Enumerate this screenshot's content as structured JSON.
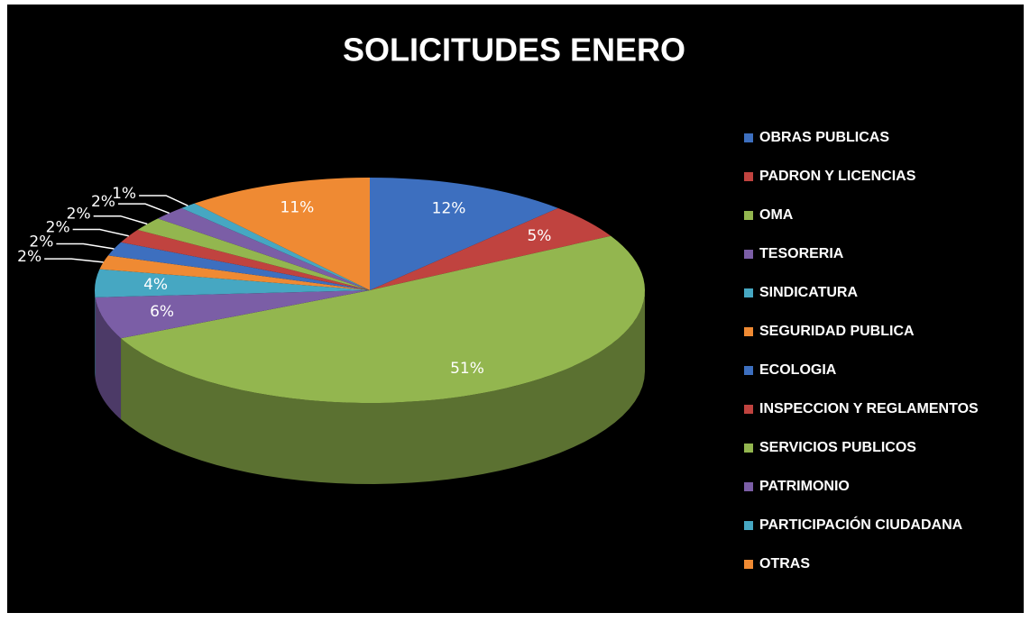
{
  "chart_data": {
    "type": "pie",
    "title": "SOLICITUDES ENERO",
    "categories": [
      "OBRAS PUBLICAS",
      "PADRON Y LICENCIAS",
      "OMA",
      "TESORERIA",
      "SINDICATURA",
      "SEGURIDAD PUBLICA",
      "ECOLOGIA",
      "INSPECCION Y REGLAMENTOS",
      "SERVICIOS PUBLICOS",
      "PATRIMONIO",
      "PARTICIPACIÓN CIUDADANA",
      "OTRAS"
    ],
    "values": [
      12,
      5,
      51,
      6,
      4,
      2,
      2,
      2,
      2,
      2,
      1,
      11
    ],
    "value_labels": [
      "12%",
      "5%",
      "51%",
      "6%",
      "4%",
      "2%",
      "2%",
      "2%",
      "2%",
      "2%",
      "1%",
      "11%"
    ],
    "colors": [
      "#3d6fbf",
      "#c0433f",
      "#93b64f",
      "#7b5ea6",
      "#46a7c2",
      "#ef8a33",
      "#3d6fbf",
      "#c0433f",
      "#93b64f",
      "#7b5ea6",
      "#46a7c2",
      "#ef8a33"
    ],
    "legend": "right"
  }
}
